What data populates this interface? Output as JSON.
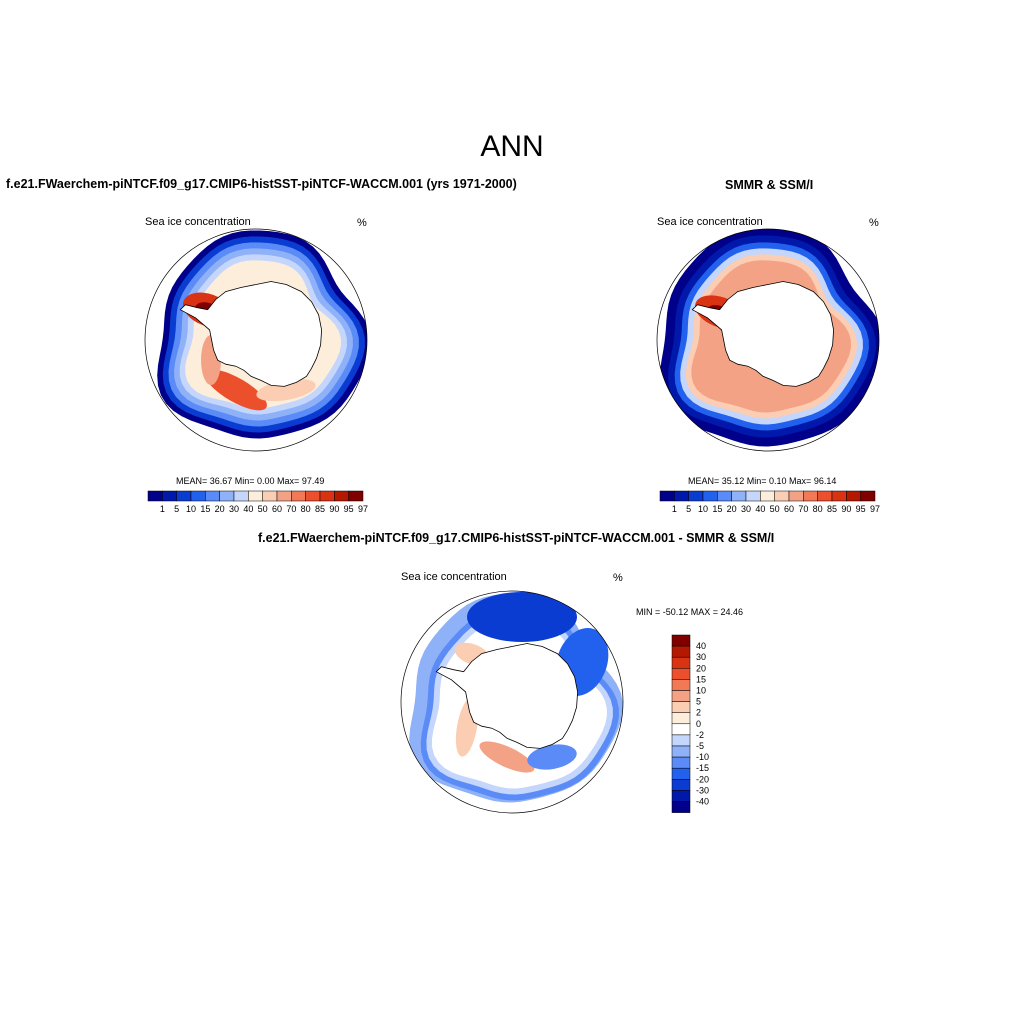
{
  "title": "ANN",
  "colors": {
    "hcbar": [
      "#00008b",
      "#0019aa",
      "#0a3cd2",
      "#2260ee",
      "#5a8bf6",
      "#8fb1f8",
      "#c4d6fb",
      "#fdeedb",
      "#fbcdb2",
      "#f4a285",
      "#f17955",
      "#ec4f2b",
      "#d93313",
      "#b41800",
      "#800000"
    ],
    "dcbar_top_to_bottom": [
      "#800000",
      "#b41800",
      "#d93313",
      "#ec4f2b",
      "#f17955",
      "#f4a285",
      "#fbcdb2",
      "#fdeedb",
      "#ffffff",
      "#c4d6fb",
      "#8fb1f8",
      "#5a8bf6",
      "#2260ee",
      "#0a3cd2",
      "#0019aa",
      "#00008b"
    ]
  },
  "panel1": {
    "title": "f.e21.FWaerchem-piNTCF.f09_g17.CMIP6-histSST-piNTCF-WACCM.001 (yrs 1971-2000)",
    "left_label": "Sea ice concentration",
    "right_label": "%",
    "stats": "MEAN=  36.67  Min=   0.00  Max=  97.49"
  },
  "panel2": {
    "title": "SMMR & SSM/I",
    "left_label": "Sea ice concentration",
    "right_label": "%",
    "stats": "MEAN=  35.12  Min=   0.10  Max=  96.14"
  },
  "panel3": {
    "title": "f.e21.FWaerchem-piNTCF.f09_g17.CMIP6-histSST-piNTCF-WACCM.001 - SMMR & SSM/I",
    "left_label": "Sea ice concentration",
    "right_label": "%",
    "stats": "MIN = -50.12 MAX =  24.46"
  },
  "chart_data": [
    {
      "type": "heatmap",
      "title": "f.e21.FWaerchem-piNTCF.f09_g17.CMIP6-histSST-piNTCF-WACCM.001 (yrs 1971-2000)",
      "variable": "Sea ice concentration",
      "units": "%",
      "levels": [
        1,
        5,
        10,
        15,
        20,
        30,
        40,
        50,
        60,
        70,
        80,
        85,
        90,
        95,
        97
      ],
      "mean": 36.67,
      "min": 0.0,
      "max": 97.49
    },
    {
      "type": "heatmap",
      "title": "SMMR & SSM/I",
      "variable": "Sea ice concentration",
      "units": "%",
      "levels": [
        1,
        5,
        10,
        15,
        20,
        30,
        40,
        50,
        60,
        70,
        80,
        85,
        90,
        95,
        97
      ],
      "mean": 35.12,
      "min": 0.1,
      "max": 96.14
    },
    {
      "type": "heatmap",
      "title": "f.e21.FWaerchem-piNTCF.f09_g17.CMIP6-histSST-piNTCF-WACCM.001 - SMMR & SSM/I",
      "variable": "Sea ice concentration",
      "units": "%",
      "levels": [
        40,
        30,
        20,
        15,
        10,
        5,
        2,
        0,
        -2,
        -5,
        -10,
        -15,
        -20,
        -30,
        -40
      ],
      "min": -50.12,
      "max": 24.46
    }
  ]
}
